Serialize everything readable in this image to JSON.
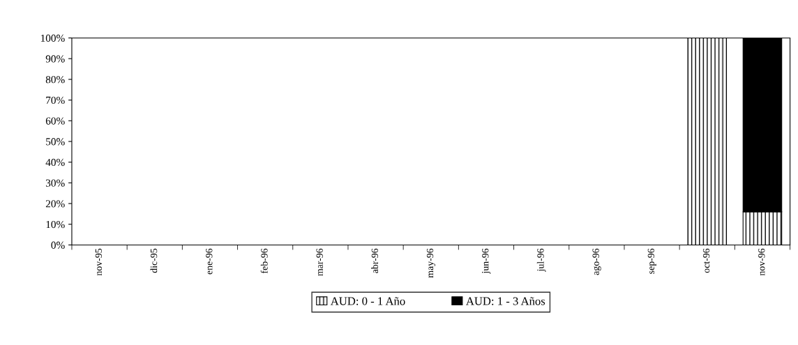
{
  "chart_data": {
    "type": "bar",
    "stacked": true,
    "categories": [
      "nov-95",
      "dic-95",
      "ene-96",
      "feb-96",
      "mar-96",
      "abr-96",
      "may-96",
      "jun-96",
      "jul-96",
      "ago-96",
      "sep-96",
      "oct-96",
      "nov-96"
    ],
    "series": [
      {
        "name": "AUD: 0 - 1 Año",
        "color": "#000000",
        "values": [
          0,
          0,
          0,
          0,
          0,
          0,
          0,
          0,
          0,
          0,
          0,
          100,
          16
        ]
      },
      {
        "name": "AUD: 1 - 3 Años",
        "color": "#000000",
        "values": [
          0,
          0,
          0,
          0,
          0,
          0,
          0,
          0,
          0,
          0,
          0,
          0,
          84
        ]
      }
    ],
    "ylim": [
      0,
      100
    ],
    "yticks": [
      {
        "value": 0,
        "label": "0%"
      },
      {
        "value": 10,
        "label": "10%"
      },
      {
        "value": 20,
        "label": "20%"
      },
      {
        "value": 30,
        "label": "30%"
      },
      {
        "value": 40,
        "label": "40%"
      },
      {
        "value": 50,
        "label": "50%"
      },
      {
        "value": 60,
        "label": "60%"
      },
      {
        "value": 70,
        "label": "70%"
      },
      {
        "value": 80,
        "label": "80%"
      },
      {
        "value": 90,
        "label": "90%"
      },
      {
        "value": 100,
        "label": "100%"
      }
    ],
    "grid": false,
    "legend": "bottom"
  }
}
